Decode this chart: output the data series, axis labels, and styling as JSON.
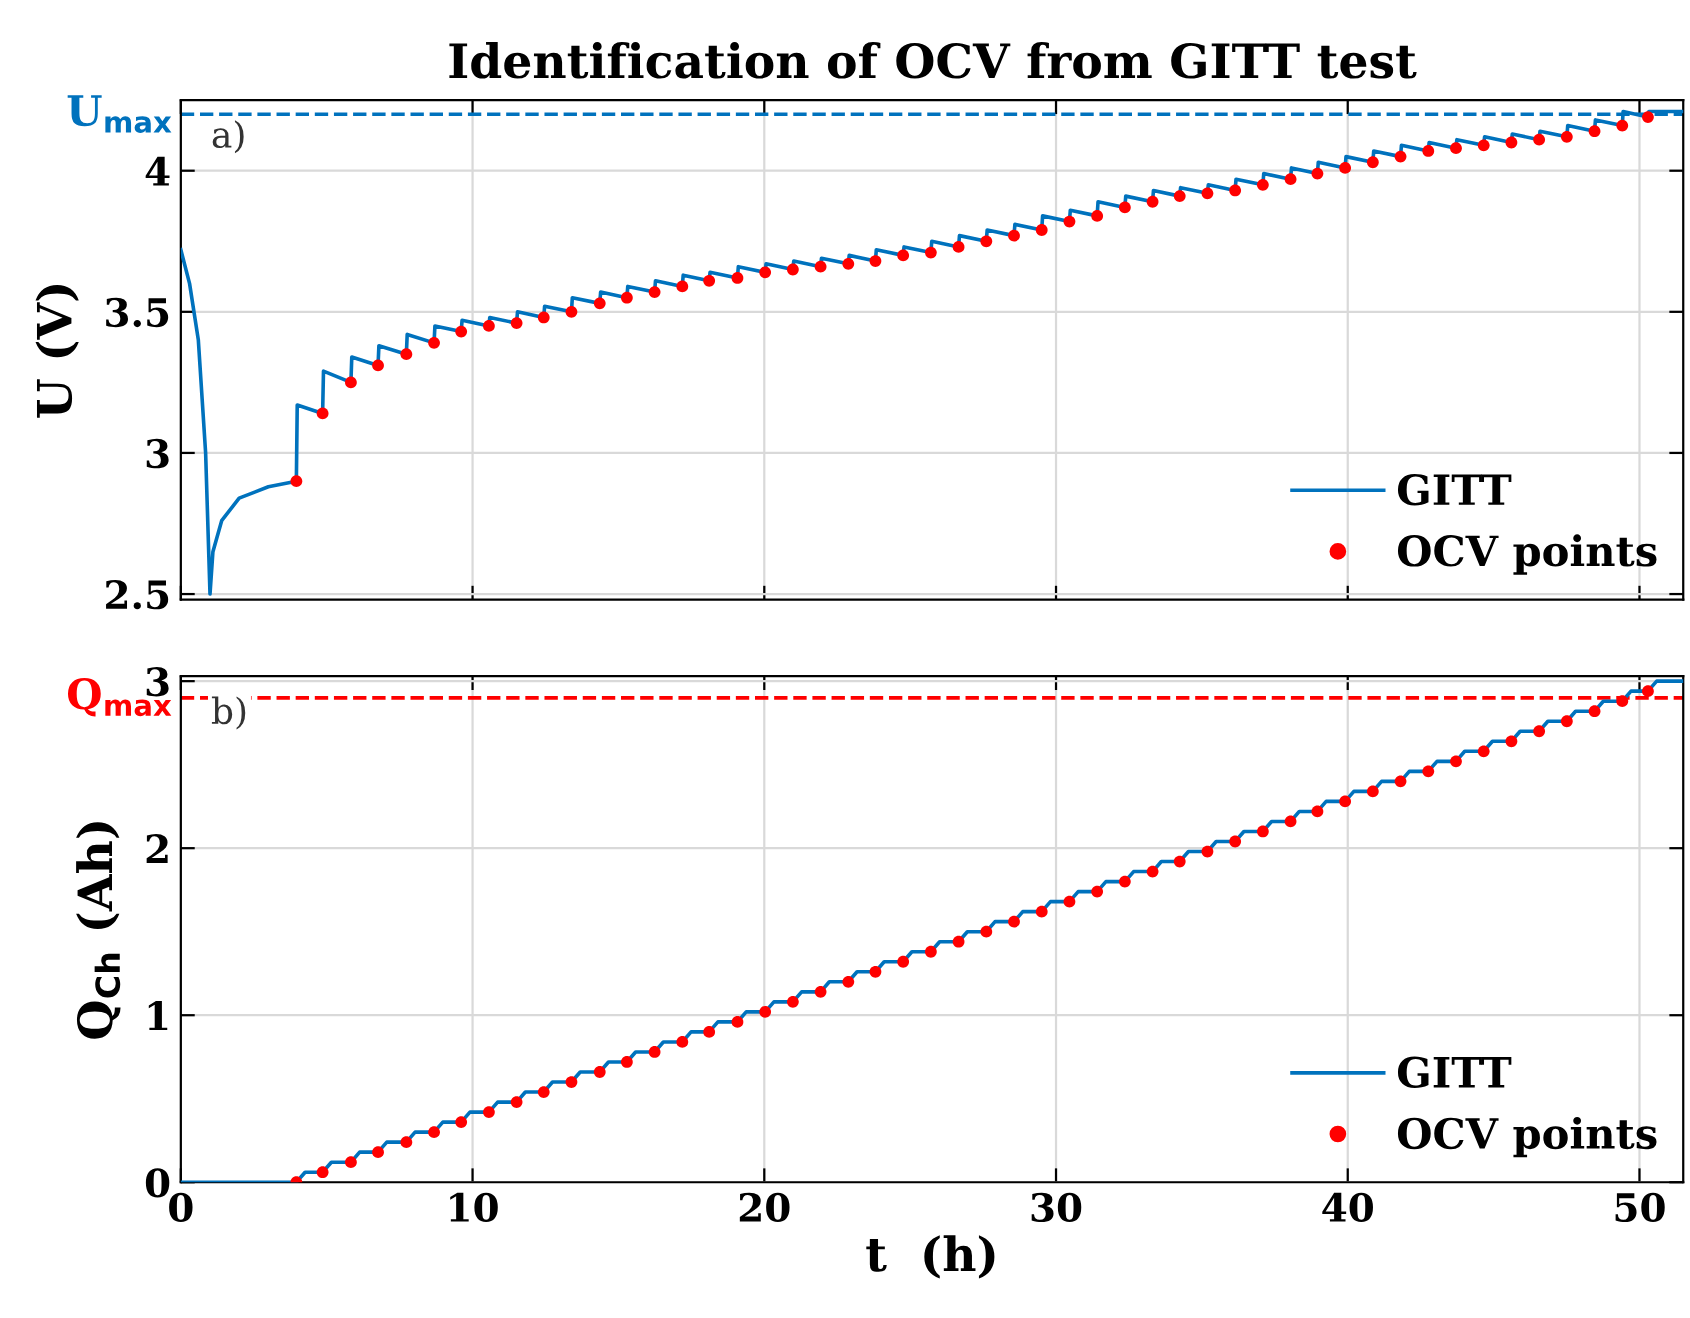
{
  "chart_data": [
    {
      "type": "line",
      "title": "Identification of OCV from GITT test",
      "ylabel": "U (V)",
      "xlim": [
        0,
        51.5
      ],
      "xticks": [
        0,
        10,
        20,
        30,
        40,
        50
      ],
      "ylim": [
        2.48,
        4.25
      ],
      "yticks": [
        2.5,
        3,
        3.5,
        4
      ],
      "grid": true,
      "legend": "bottom right",
      "tick_labels": "y",
      "annotations": [
        "a)"
      ],
      "ref_lines": [
        {
          "axis": "y",
          "value": 4.2,
          "label": "U$_{max}$",
          "color": "#0072bd",
          "line_style": "dashed"
        }
      ],
      "series": [
        {
          "name": "GITT",
          "color": "#0072bd",
          "marker": "none",
          "line_style": "solid",
          "x": [
            0,
            0.3,
            0.6,
            0.85,
            1.0,
            1.1,
            1.4,
            2.0,
            3.0,
            3.96,
            3.99,
            4.86,
            4.89,
            5.83,
            5.86,
            6.76,
            6.79,
            7.73,
            7.76,
            8.68,
            8.71,
            9.61,
            9.64,
            10.56,
            10.59,
            11.51,
            11.54,
            12.44,
            12.47,
            13.39,
            13.42,
            14.36,
            14.39,
            15.29,
            15.32,
            16.24,
            16.27,
            17.19,
            17.22,
            18.11,
            18.14,
            19.08,
            19.11,
            20.03,
            20.06,
            20.98,
            21.01,
            21.93,
            21.96,
            22.88,
            22.91,
            23.81,
            23.84,
            24.76,
            24.79,
            25.71,
            25.74,
            26.66,
            26.69,
            27.61,
            27.64,
            28.56,
            28.59,
            29.51,
            29.54,
            30.46,
            30.49,
            31.41,
            31.44,
            32.36,
            32.39,
            33.31,
            33.34,
            34.24,
            34.27,
            35.19,
            35.22,
            36.14,
            36.17,
            37.09,
            37.12,
            38.04,
            38.07,
            38.96,
            38.99,
            39.91,
            39.94,
            40.86,
            40.89,
            41.81,
            41.84,
            42.76,
            42.79,
            43.71,
            43.74,
            44.66,
            44.69,
            45.61,
            45.64,
            46.56,
            46.59,
            47.51,
            47.54,
            48.46,
            48.49,
            49.41,
            49.44,
            50.29,
            50.32,
            51.5
          ],
          "values": [
            3.72,
            3.6,
            3.4,
            3.0,
            2.5,
            2.65,
            2.76,
            2.84,
            2.88,
            2.9,
            3.17,
            3.14,
            3.29,
            3.25,
            3.34,
            3.31,
            3.38,
            3.35,
            3.42,
            3.39,
            3.45,
            3.43,
            3.47,
            3.45,
            3.48,
            3.46,
            3.5,
            3.48,
            3.52,
            3.5,
            3.55,
            3.53,
            3.57,
            3.55,
            3.59,
            3.57,
            3.61,
            3.59,
            3.63,
            3.61,
            3.64,
            3.62,
            3.66,
            3.64,
            3.67,
            3.65,
            3.68,
            3.66,
            3.69,
            3.67,
            3.7,
            3.68,
            3.72,
            3.7,
            3.73,
            3.71,
            3.75,
            3.73,
            3.77,
            3.75,
            3.79,
            3.77,
            3.81,
            3.79,
            3.84,
            3.82,
            3.86,
            3.84,
            3.89,
            3.87,
            3.91,
            3.89,
            3.93,
            3.91,
            3.94,
            3.92,
            3.95,
            3.93,
            3.97,
            3.95,
            3.99,
            3.97,
            4.01,
            3.99,
            4.03,
            4.01,
            4.05,
            4.03,
            4.07,
            4.05,
            4.09,
            4.07,
            4.1,
            4.08,
            4.11,
            4.09,
            4.12,
            4.1,
            4.13,
            4.11,
            4.14,
            4.12,
            4.16,
            4.14,
            4.18,
            4.16,
            4.21,
            4.19,
            4.21,
            4.21
          ]
        },
        {
          "name": "OCV points",
          "type": "scatter",
          "color": "#ff0000",
          "marker": "circle",
          "x": [
            3.96,
            4.86,
            5.83,
            6.76,
            7.73,
            8.68,
            9.61,
            10.56,
            11.51,
            12.44,
            13.39,
            14.36,
            15.29,
            16.24,
            17.19,
            18.11,
            19.08,
            20.03,
            20.98,
            21.93,
            22.88,
            23.81,
            24.76,
            25.71,
            26.66,
            27.61,
            28.56,
            29.51,
            30.46,
            31.41,
            32.36,
            33.31,
            34.24,
            35.19,
            36.14,
            37.09,
            38.04,
            38.96,
            39.91,
            40.86,
            41.81,
            42.76,
            43.71,
            44.66,
            45.61,
            46.56,
            47.51,
            48.46,
            49.41,
            50.29
          ],
          "values": [
            2.9,
            3.14,
            3.25,
            3.31,
            3.35,
            3.39,
            3.43,
            3.45,
            3.46,
            3.48,
            3.5,
            3.53,
            3.55,
            3.57,
            3.59,
            3.61,
            3.62,
            3.64,
            3.65,
            3.66,
            3.67,
            3.68,
            3.7,
            3.71,
            3.73,
            3.75,
            3.77,
            3.79,
            3.82,
            3.84,
            3.87,
            3.89,
            3.91,
            3.92,
            3.93,
            3.95,
            3.97,
            3.99,
            4.01,
            4.03,
            4.05,
            4.07,
            4.08,
            4.09,
            4.1,
            4.11,
            4.12,
            4.14,
            4.16,
            4.19
          ]
        }
      ]
    },
    {
      "type": "line",
      "xlabel": "t  (h)",
      "ylabel": "Q$_{Ch}$ (Ah)",
      "xlim": [
        0,
        51.5
      ],
      "xticks": [
        0,
        10,
        20,
        30,
        40,
        50
      ],
      "ylim": [
        0,
        3.03
      ],
      "yticks": [
        0,
        1,
        2,
        3
      ],
      "grid": true,
      "legend": "bottom right",
      "annotations": [
        "b)"
      ],
      "ref_lines": [
        {
          "axis": "y",
          "value": 2.9,
          "label": "Q$_{max}$",
          "color": "#ff0000",
          "line_style": "dashed"
        }
      ],
      "series": [
        {
          "name": "GITT",
          "color": "#0072bd",
          "marker": "none",
          "line_style": "solid",
          "x": [
            0,
            3.96,
            4.26,
            4.86,
            5.16,
            5.83,
            6.13,
            6.76,
            7.06,
            7.73,
            8.03,
            8.68,
            8.98,
            9.61,
            9.91,
            10.56,
            10.86,
            11.51,
            11.81,
            12.44,
            12.74,
            13.39,
            13.69,
            14.36,
            14.66,
            15.29,
            15.59,
            16.24,
            16.54,
            17.19,
            17.49,
            18.11,
            18.41,
            19.08,
            19.38,
            20.03,
            20.33,
            20.98,
            21.28,
            21.93,
            22.23,
            22.88,
            23.18,
            23.81,
            24.11,
            24.76,
            25.06,
            25.71,
            26.01,
            26.66,
            26.96,
            27.61,
            27.91,
            28.56,
            28.86,
            29.51,
            29.81,
            30.46,
            30.76,
            31.41,
            31.71,
            32.36,
            32.66,
            33.31,
            33.61,
            34.24,
            34.54,
            35.19,
            35.49,
            36.14,
            36.44,
            37.09,
            37.39,
            38.04,
            38.34,
            38.96,
            39.26,
            39.91,
            40.21,
            40.86,
            41.16,
            41.81,
            42.11,
            42.76,
            43.06,
            43.71,
            44.01,
            44.66,
            44.96,
            45.61,
            45.91,
            46.56,
            46.86,
            47.51,
            47.81,
            48.46,
            48.76,
            49.41,
            49.71,
            50.29,
            50.59,
            51.5
          ],
          "values": [
            0,
            0,
            0.06,
            0.06,
            0.12,
            0.12,
            0.18,
            0.18,
            0.24,
            0.24,
            0.3,
            0.3,
            0.36,
            0.36,
            0.42,
            0.42,
            0.48,
            0.48,
            0.54,
            0.54,
            0.6,
            0.6,
            0.66,
            0.66,
            0.72,
            0.72,
            0.78,
            0.78,
            0.84,
            0.84,
            0.9,
            0.9,
            0.96,
            0.96,
            1.02,
            1.02,
            1.08,
            1.08,
            1.14,
            1.14,
            1.2,
            1.2,
            1.26,
            1.26,
            1.32,
            1.32,
            1.38,
            1.38,
            1.44,
            1.44,
            1.5,
            1.5,
            1.56,
            1.56,
            1.62,
            1.62,
            1.68,
            1.68,
            1.74,
            1.74,
            1.8,
            1.8,
            1.86,
            1.86,
            1.92,
            1.92,
            1.98,
            1.98,
            2.04,
            2.04,
            2.1,
            2.1,
            2.16,
            2.16,
            2.22,
            2.22,
            2.28,
            2.28,
            2.34,
            2.34,
            2.4,
            2.4,
            2.46,
            2.46,
            2.52,
            2.52,
            2.58,
            2.58,
            2.64,
            2.64,
            2.7,
            2.7,
            2.76,
            2.76,
            2.82,
            2.82,
            2.88,
            2.88,
            2.94,
            2.94,
            3.0,
            3.0
          ]
        },
        {
          "name": "OCV points",
          "type": "scatter",
          "color": "#ff0000",
          "marker": "circle",
          "x": [
            3.96,
            4.86,
            5.83,
            6.76,
            7.73,
            8.68,
            9.61,
            10.56,
            11.51,
            12.44,
            13.39,
            14.36,
            15.29,
            16.24,
            17.19,
            18.11,
            19.08,
            20.03,
            20.98,
            21.93,
            22.88,
            23.81,
            24.76,
            25.71,
            26.66,
            27.61,
            28.56,
            29.51,
            30.46,
            31.41,
            32.36,
            33.31,
            34.24,
            35.19,
            36.14,
            37.09,
            38.04,
            38.96,
            39.91,
            40.86,
            41.81,
            42.76,
            43.71,
            44.66,
            45.61,
            46.56,
            47.51,
            48.46,
            49.41,
            50.29
          ],
          "values": [
            0,
            0.06,
            0.12,
            0.18,
            0.24,
            0.3,
            0.36,
            0.42,
            0.48,
            0.54,
            0.6,
            0.66,
            0.72,
            0.78,
            0.84,
            0.9,
            0.96,
            1.02,
            1.08,
            1.14,
            1.2,
            1.26,
            1.32,
            1.38,
            1.44,
            1.5,
            1.56,
            1.62,
            1.68,
            1.74,
            1.8,
            1.86,
            1.92,
            1.98,
            2.04,
            2.1,
            2.16,
            2.22,
            2.28,
            2.34,
            2.4,
            2.46,
            2.52,
            2.58,
            2.64,
            2.7,
            2.76,
            2.82,
            2.88,
            2.94
          ]
        }
      ]
    }
  ]
}
